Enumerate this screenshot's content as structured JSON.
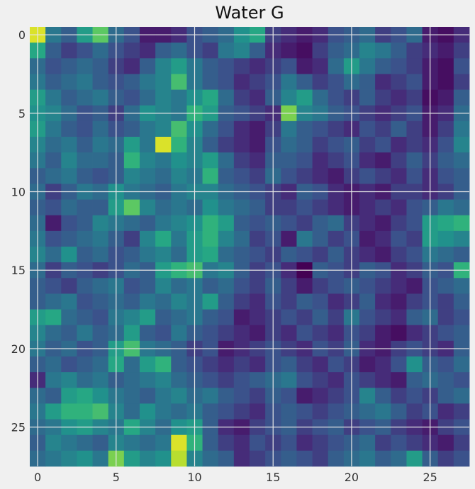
{
  "chart_data": {
    "type": "heatmap",
    "title": "Water G",
    "xlabel": "",
    "ylabel": "",
    "grid": true,
    "xlim": [
      -0.5,
      27.5
    ],
    "ylim": [
      27.5,
      -0.5
    ],
    "x_ticks": [
      0,
      5,
      10,
      15,
      20,
      25
    ],
    "y_ticks": [
      0,
      5,
      10,
      15,
      20,
      25
    ],
    "colormap": "viridis",
    "value_range": [
      0,
      1
    ],
    "values": [
      [
        0.95,
        0.4,
        0.3,
        0.55,
        0.75,
        0.35,
        0.25,
        0.1,
        0.1,
        0.15,
        0.25,
        0.3,
        0.35,
        0.5,
        0.6,
        0.2,
        0.15,
        0.1,
        0.15,
        0.25,
        0.3,
        0.35,
        0.2,
        0.25,
        0.35,
        0.1,
        0.05,
        0.15
      ],
      [
        0.6,
        0.3,
        0.2,
        0.25,
        0.35,
        0.25,
        0.2,
        0.15,
        0.3,
        0.35,
        0.25,
        0.2,
        0.4,
        0.45,
        0.3,
        0.15,
        0.1,
        0.05,
        0.2,
        0.3,
        0.35,
        0.45,
        0.4,
        0.3,
        0.2,
        0.15,
        0.1,
        0.2
      ],
      [
        0.35,
        0.25,
        0.3,
        0.35,
        0.3,
        0.2,
        0.15,
        0.3,
        0.45,
        0.55,
        0.4,
        0.3,
        0.25,
        0.2,
        0.15,
        0.2,
        0.25,
        0.1,
        0.15,
        0.35,
        0.55,
        0.4,
        0.3,
        0.25,
        0.2,
        0.1,
        0.05,
        0.25
      ],
      [
        0.4,
        0.3,
        0.35,
        0.4,
        0.3,
        0.25,
        0.3,
        0.4,
        0.45,
        0.7,
        0.4,
        0.3,
        0.25,
        0.15,
        0.2,
        0.25,
        0.4,
        0.3,
        0.2,
        0.25,
        0.35,
        0.3,
        0.15,
        0.2,
        0.25,
        0.1,
        0.05,
        0.2
      ],
      [
        0.55,
        0.4,
        0.3,
        0.35,
        0.4,
        0.3,
        0.25,
        0.35,
        0.45,
        0.4,
        0.5,
        0.6,
        0.35,
        0.2,
        0.15,
        0.3,
        0.45,
        0.55,
        0.35,
        0.25,
        0.2,
        0.3,
        0.2,
        0.15,
        0.2,
        0.05,
        0.1,
        0.3
      ],
      [
        0.5,
        0.45,
        0.35,
        0.25,
        0.3,
        0.2,
        0.35,
        0.5,
        0.45,
        0.4,
        0.65,
        0.55,
        0.3,
        0.25,
        0.2,
        0.15,
        0.8,
        0.45,
        0.4,
        0.3,
        0.25,
        0.2,
        0.15,
        0.2,
        0.25,
        0.1,
        0.15,
        0.35
      ],
      [
        0.55,
        0.4,
        0.3,
        0.25,
        0.35,
        0.25,
        0.3,
        0.4,
        0.45,
        0.7,
        0.5,
        0.35,
        0.25,
        0.15,
        0.1,
        0.2,
        0.4,
        0.3,
        0.25,
        0.2,
        0.15,
        0.25,
        0.2,
        0.3,
        0.2,
        0.1,
        0.2,
        0.4
      ],
      [
        0.45,
        0.35,
        0.4,
        0.3,
        0.4,
        0.35,
        0.55,
        0.4,
        0.95,
        0.65,
        0.45,
        0.3,
        0.2,
        0.15,
        0.1,
        0.25,
        0.35,
        0.3,
        0.2,
        0.25,
        0.3,
        0.2,
        0.25,
        0.15,
        0.2,
        0.15,
        0.25,
        0.45
      ],
      [
        0.4,
        0.3,
        0.45,
        0.35,
        0.35,
        0.3,
        0.65,
        0.45,
        0.4,
        0.5,
        0.45,
        0.55,
        0.35,
        0.2,
        0.15,
        0.3,
        0.3,
        0.25,
        0.15,
        0.2,
        0.25,
        0.15,
        0.1,
        0.2,
        0.3,
        0.2,
        0.3,
        0.35
      ],
      [
        0.3,
        0.35,
        0.4,
        0.3,
        0.25,
        0.3,
        0.45,
        0.4,
        0.35,
        0.45,
        0.4,
        0.65,
        0.3,
        0.25,
        0.2,
        0.35,
        0.25,
        0.2,
        0.15,
        0.1,
        0.2,
        0.25,
        0.2,
        0.15,
        0.25,
        0.15,
        0.25,
        0.3
      ],
      [
        0.35,
        0.2,
        0.3,
        0.4,
        0.35,
        0.5,
        0.4,
        0.35,
        0.3,
        0.4,
        0.45,
        0.45,
        0.35,
        0.3,
        0.25,
        0.2,
        0.15,
        0.3,
        0.25,
        0.15,
        0.1,
        0.15,
        0.1,
        0.2,
        0.2,
        0.15,
        0.2,
        0.3
      ],
      [
        0.3,
        0.25,
        0.35,
        0.3,
        0.3,
        0.55,
        0.75,
        0.45,
        0.35,
        0.4,
        0.35,
        0.5,
        0.4,
        0.35,
        0.3,
        0.2,
        0.2,
        0.25,
        0.2,
        0.15,
        0.1,
        0.15,
        0.2,
        0.15,
        0.25,
        0.3,
        0.4,
        0.35
      ],
      [
        0.35,
        0.1,
        0.25,
        0.3,
        0.45,
        0.4,
        0.35,
        0.3,
        0.4,
        0.45,
        0.5,
        0.65,
        0.55,
        0.3,
        0.25,
        0.3,
        0.25,
        0.2,
        0.3,
        0.35,
        0.2,
        0.15,
        0.1,
        0.2,
        0.25,
        0.55,
        0.6,
        0.65
      ],
      [
        0.4,
        0.25,
        0.3,
        0.35,
        0.4,
        0.3,
        0.2,
        0.45,
        0.6,
        0.4,
        0.55,
        0.65,
        0.45,
        0.35,
        0.2,
        0.25,
        0.1,
        0.4,
        0.3,
        0.2,
        0.25,
        0.1,
        0.15,
        0.25,
        0.2,
        0.55,
        0.5,
        0.45
      ],
      [
        0.45,
        0.35,
        0.5,
        0.3,
        0.35,
        0.25,
        0.3,
        0.4,
        0.45,
        0.35,
        0.55,
        0.6,
        0.35,
        0.3,
        0.25,
        0.2,
        0.3,
        0.25,
        0.2,
        0.3,
        0.2,
        0.15,
        0.1,
        0.2,
        0.25,
        0.4,
        0.35,
        0.3
      ],
      [
        0.35,
        0.2,
        0.3,
        0.25,
        0.2,
        0.25,
        0.35,
        0.3,
        0.55,
        0.65,
        0.7,
        0.4,
        0.45,
        0.3,
        0.2,
        0.25,
        0.15,
        0.0,
        0.3,
        0.25,
        0.2,
        0.3,
        0.25,
        0.15,
        0.2,
        0.3,
        0.25,
        0.65
      ],
      [
        0.3,
        0.25,
        0.2,
        0.3,
        0.35,
        0.4,
        0.25,
        0.3,
        0.45,
        0.35,
        0.4,
        0.3,
        0.35,
        0.25,
        0.2,
        0.3,
        0.2,
        0.1,
        0.2,
        0.25,
        0.3,
        0.25,
        0.2,
        0.15,
        0.1,
        0.25,
        0.3,
        0.35
      ],
      [
        0.3,
        0.35,
        0.4,
        0.25,
        0.3,
        0.35,
        0.3,
        0.4,
        0.35,
        0.45,
        0.4,
        0.55,
        0.3,
        0.2,
        0.15,
        0.25,
        0.2,
        0.3,
        0.25,
        0.15,
        0.2,
        0.3,
        0.15,
        0.1,
        0.2,
        0.25,
        0.2,
        0.3
      ],
      [
        0.55,
        0.6,
        0.35,
        0.3,
        0.25,
        0.4,
        0.45,
        0.55,
        0.3,
        0.35,
        0.4,
        0.3,
        0.25,
        0.1,
        0.15,
        0.2,
        0.25,
        0.2,
        0.3,
        0.2,
        0.4,
        0.25,
        0.2,
        0.15,
        0.3,
        0.35,
        0.2,
        0.25
      ],
      [
        0.45,
        0.35,
        0.3,
        0.4,
        0.3,
        0.35,
        0.55,
        0.3,
        0.25,
        0.4,
        0.3,
        0.25,
        0.2,
        0.15,
        0.1,
        0.2,
        0.15,
        0.25,
        0.2,
        0.15,
        0.25,
        0.2,
        0.1,
        0.05,
        0.15,
        0.2,
        0.25,
        0.3
      ],
      [
        0.4,
        0.3,
        0.35,
        0.25,
        0.3,
        0.55,
        0.7,
        0.4,
        0.35,
        0.3,
        0.2,
        0.25,
        0.1,
        0.15,
        0.2,
        0.25,
        0.2,
        0.15,
        0.25,
        0.2,
        0.3,
        0.15,
        0.1,
        0.2,
        0.25,
        0.2,
        0.15,
        0.3
      ],
      [
        0.3,
        0.35,
        0.25,
        0.3,
        0.35,
        0.6,
        0.35,
        0.55,
        0.65,
        0.3,
        0.25,
        0.2,
        0.15,
        0.2,
        0.15,
        0.25,
        0.3,
        0.2,
        0.15,
        0.25,
        0.2,
        0.1,
        0.15,
        0.25,
        0.5,
        0.3,
        0.25,
        0.35
      ],
      [
        0.15,
        0.4,
        0.45,
        0.35,
        0.4,
        0.3,
        0.35,
        0.4,
        0.45,
        0.35,
        0.3,
        0.25,
        0.2,
        0.25,
        0.3,
        0.35,
        0.4,
        0.25,
        0.2,
        0.15,
        0.25,
        0.2,
        0.15,
        0.1,
        0.3,
        0.35,
        0.3,
        0.25
      ],
      [
        0.35,
        0.3,
        0.55,
        0.6,
        0.5,
        0.4,
        0.35,
        0.3,
        0.4,
        0.45,
        0.35,
        0.4,
        0.3,
        0.25,
        0.2,
        0.3,
        0.25,
        0.1,
        0.15,
        0.2,
        0.25,
        0.45,
        0.3,
        0.2,
        0.25,
        0.2,
        0.3,
        0.35
      ],
      [
        0.4,
        0.55,
        0.65,
        0.65,
        0.7,
        0.45,
        0.35,
        0.5,
        0.4,
        0.35,
        0.4,
        0.3,
        0.25,
        0.2,
        0.15,
        0.25,
        0.3,
        0.25,
        0.2,
        0.25,
        0.3,
        0.35,
        0.4,
        0.3,
        0.2,
        0.25,
        0.15,
        0.2
      ],
      [
        0.35,
        0.4,
        0.5,
        0.55,
        0.45,
        0.4,
        0.6,
        0.45,
        0.35,
        0.5,
        0.55,
        0.3,
        0.15,
        0.1,
        0.2,
        0.25,
        0.3,
        0.2,
        0.25,
        0.3,
        0.2,
        0.25,
        0.3,
        0.2,
        0.15,
        0.1,
        0.2,
        0.25
      ],
      [
        0.3,
        0.45,
        0.4,
        0.35,
        0.3,
        0.45,
        0.4,
        0.35,
        0.4,
        0.95,
        0.65,
        0.3,
        0.2,
        0.15,
        0.25,
        0.2,
        0.25,
        0.15,
        0.2,
        0.25,
        0.3,
        0.35,
        0.2,
        0.25,
        0.2,
        0.15,
        0.1,
        0.2
      ],
      [
        0.35,
        0.4,
        0.45,
        0.5,
        0.4,
        0.8,
        0.55,
        0.45,
        0.5,
        0.9,
        0.45,
        0.35,
        0.3,
        0.15,
        0.2,
        0.25,
        0.3,
        0.25,
        0.2,
        0.3,
        0.35,
        0.4,
        0.3,
        0.35,
        0.55,
        0.3,
        0.2,
        0.25
      ]
    ]
  }
}
